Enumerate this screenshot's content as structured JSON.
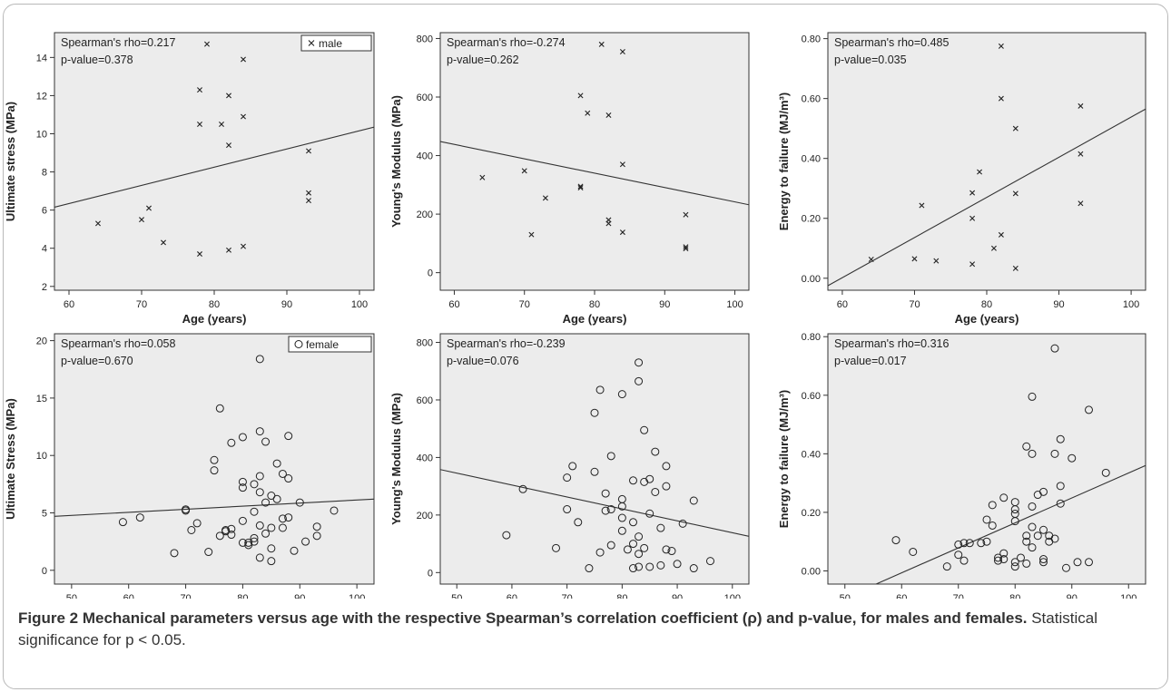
{
  "colors": {
    "panel_bg": "#ececec",
    "marks": "#222222",
    "text": "#222222",
    "caption_text": "#333333"
  },
  "caption": {
    "bold": "Figure 2 Mechanical parameters versus age with the respective Spearman’s correlation coefficient (ρ) and p-value, for males and females.",
    "normal": " Statistical significance for p < 0.05."
  },
  "chart_data": [
    {
      "type": "scatter",
      "marker": "x",
      "xlabel": "Age (years)",
      "ylabel": "Ultimate stress (MPa)",
      "xlim": [
        58,
        102
      ],
      "ylim": [
        1.8,
        15.3
      ],
      "xticks": [
        60,
        70,
        80,
        90,
        100
      ],
      "yticks": [
        2,
        4,
        6,
        8,
        10,
        12,
        14
      ],
      "annotations": [
        "Spearman's rho=0.217",
        "p-value=0.378"
      ],
      "legend": {
        "label": "male",
        "position": "top-right"
      },
      "fit_line": [
        [
          58,
          6.15
        ],
        [
          102,
          10.35
        ]
      ],
      "points": [
        [
          64,
          5.3
        ],
        [
          70,
          5.5
        ],
        [
          71,
          6.1
        ],
        [
          73,
          4.3
        ],
        [
          78,
          12.3
        ],
        [
          78,
          10.5
        ],
        [
          78,
          3.7
        ],
        [
          79,
          14.7
        ],
        [
          81,
          10.5
        ],
        [
          82,
          12.0
        ],
        [
          82,
          9.4
        ],
        [
          82,
          3.9
        ],
        [
          84,
          13.9
        ],
        [
          84,
          10.9
        ],
        [
          84,
          4.1
        ],
        [
          93,
          9.1
        ],
        [
          93,
          6.9
        ],
        [
          93,
          6.5
        ]
      ]
    },
    {
      "type": "scatter",
      "marker": "x",
      "xlabel": "Age (years)",
      "ylabel": "Young's Modulus (MPa)",
      "xlim": [
        58,
        102
      ],
      "ylim": [
        -60,
        820
      ],
      "xticks": [
        60,
        70,
        80,
        90,
        100
      ],
      "yticks": [
        0,
        200,
        400,
        600,
        800
      ],
      "annotations": [
        "Spearman's rho=-0.274",
        "p-value=0.262"
      ],
      "fit_line": [
        [
          58,
          448
        ],
        [
          102,
          232
        ]
      ],
      "points": [
        [
          64,
          325
        ],
        [
          70,
          348
        ],
        [
          71,
          130
        ],
        [
          73,
          255
        ],
        [
          78,
          605
        ],
        [
          78,
          295
        ],
        [
          78,
          290
        ],
        [
          79,
          545
        ],
        [
          81,
          780
        ],
        [
          82,
          538
        ],
        [
          82,
          180
        ],
        [
          82,
          168
        ],
        [
          84,
          755
        ],
        [
          84,
          370
        ],
        [
          84,
          138
        ],
        [
          93,
          198
        ],
        [
          93,
          88
        ],
        [
          93,
          82
        ]
      ]
    },
    {
      "type": "scatter",
      "marker": "x",
      "xlabel": "Age (years)",
      "ylabel": "Energy to failure (MJ/m³)",
      "xlim": [
        58,
        102
      ],
      "ylim": [
        -0.04,
        0.82
      ],
      "xticks": [
        60,
        70,
        80,
        90,
        100
      ],
      "yticks": [
        0.0,
        0.2,
        0.4,
        0.6,
        0.8
      ],
      "ytick_labels": [
        "0.00",
        "0.20",
        "0.40",
        "0.60",
        "0.80"
      ],
      "annotations": [
        "Spearman's rho=0.485",
        "p-value=0.035"
      ],
      "fit_line": [
        [
          58,
          -0.025
        ],
        [
          102,
          0.565
        ]
      ],
      "points": [
        [
          64,
          0.063
        ],
        [
          70,
          0.065
        ],
        [
          71,
          0.243
        ],
        [
          73,
          0.058
        ],
        [
          78,
          0.285
        ],
        [
          78,
          0.2
        ],
        [
          78,
          0.047
        ],
        [
          79,
          0.355
        ],
        [
          81,
          0.1
        ],
        [
          82,
          0.775
        ],
        [
          82,
          0.6
        ],
        [
          82,
          0.145
        ],
        [
          84,
          0.5
        ],
        [
          84,
          0.283
        ],
        [
          84,
          0.033
        ],
        [
          93,
          0.575
        ],
        [
          93,
          0.415
        ],
        [
          93,
          0.25
        ]
      ]
    },
    {
      "type": "scatter",
      "marker": "o",
      "xlabel": "Age (years)",
      "ylabel": "Ultimate Stress (MPa)",
      "xlim": [
        47,
        103
      ],
      "ylim": [
        -1.2,
        20.6
      ],
      "xticks": [
        50,
        60,
        70,
        80,
        90,
        100
      ],
      "yticks": [
        0,
        5,
        10,
        15,
        20
      ],
      "annotations": [
        "Spearman's rho=0.058",
        "p-value=0.670"
      ],
      "legend": {
        "label": "female",
        "position": "top-right"
      },
      "fit_line": [
        [
          47,
          4.7
        ],
        [
          103,
          6.2
        ]
      ],
      "points": [
        [
          59,
          4.2
        ],
        [
          62,
          4.6
        ],
        [
          68,
          1.5
        ],
        [
          70,
          5.3
        ],
        [
          70,
          5.2
        ],
        [
          71,
          3.5
        ],
        [
          72,
          4.1
        ],
        [
          74,
          1.6
        ],
        [
          75,
          9.6
        ],
        [
          75,
          8.7
        ],
        [
          76,
          14.1
        ],
        [
          76,
          3.0
        ],
        [
          77,
          3.5
        ],
        [
          77,
          3.4
        ],
        [
          78,
          11.1
        ],
        [
          78,
          3.6
        ],
        [
          78,
          3.1
        ],
        [
          80,
          11.6
        ],
        [
          80,
          7.7
        ],
        [
          80,
          7.2
        ],
        [
          80,
          4.3
        ],
        [
          80,
          2.4
        ],
        [
          81,
          2.4
        ],
        [
          81,
          2.2
        ],
        [
          82,
          7.5
        ],
        [
          82,
          5.1
        ],
        [
          82,
          2.8
        ],
        [
          82,
          2.5
        ],
        [
          83,
          18.4
        ],
        [
          83,
          12.1
        ],
        [
          83,
          8.2
        ],
        [
          83,
          6.8
        ],
        [
          83,
          3.9
        ],
        [
          83,
          1.1
        ],
        [
          84,
          11.2
        ],
        [
          84,
          5.9
        ],
        [
          84,
          3.2
        ],
        [
          85,
          6.5
        ],
        [
          85,
          3.7
        ],
        [
          85,
          1.9
        ],
        [
          85,
          0.8
        ],
        [
          86,
          9.3
        ],
        [
          86,
          6.2
        ],
        [
          87,
          8.4
        ],
        [
          87,
          4.5
        ],
        [
          87,
          3.7
        ],
        [
          88,
          11.7
        ],
        [
          88,
          8.0
        ],
        [
          88,
          4.6
        ],
        [
          89,
          1.7
        ],
        [
          90,
          5.9
        ],
        [
          91,
          2.5
        ],
        [
          93,
          3.8
        ],
        [
          93,
          3.0
        ],
        [
          96,
          5.2
        ]
      ]
    },
    {
      "type": "scatter",
      "marker": "o",
      "xlabel": "Age (years)",
      "ylabel": "Young's Modulus (MPa)",
      "xlim": [
        47,
        103
      ],
      "ylim": [
        -40,
        830
      ],
      "xticks": [
        50,
        60,
        70,
        80,
        90,
        100
      ],
      "yticks": [
        0,
        200,
        400,
        600,
        800
      ],
      "annotations": [
        "Spearman's rho=-0.239",
        "p-value=0.076"
      ],
      "fit_line": [
        [
          47,
          358
        ],
        [
          103,
          126
        ]
      ],
      "points": [
        [
          59,
          130
        ],
        [
          62,
          290
        ],
        [
          68,
          85
        ],
        [
          70,
          330
        ],
        [
          70,
          220
        ],
        [
          71,
          370
        ],
        [
          72,
          175
        ],
        [
          74,
          15
        ],
        [
          75,
          555
        ],
        [
          75,
          350
        ],
        [
          76,
          635
        ],
        [
          76,
          70
        ],
        [
          77,
          275
        ],
        [
          77,
          215
        ],
        [
          78,
          405
        ],
        [
          78,
          220
        ],
        [
          78,
          95
        ],
        [
          80,
          620
        ],
        [
          80,
          255
        ],
        [
          80,
          230
        ],
        [
          80,
          190
        ],
        [
          80,
          145
        ],
        [
          81,
          80
        ],
        [
          82,
          320
        ],
        [
          82,
          175
        ],
        [
          82,
          100
        ],
        [
          82,
          15
        ],
        [
          83,
          730
        ],
        [
          83,
          665
        ],
        [
          83,
          125
        ],
        [
          83,
          65
        ],
        [
          83,
          20
        ],
        [
          84,
          495
        ],
        [
          84,
          315
        ],
        [
          84,
          85
        ],
        [
          85,
          325
        ],
        [
          85,
          205
        ],
        [
          85,
          20
        ],
        [
          86,
          420
        ],
        [
          86,
          280
        ],
        [
          87,
          155
        ],
        [
          87,
          25
        ],
        [
          88,
          370
        ],
        [
          88,
          300
        ],
        [
          88,
          80
        ],
        [
          89,
          75
        ],
        [
          90,
          30
        ],
        [
          91,
          170
        ],
        [
          93,
          250
        ],
        [
          93,
          15
        ],
        [
          96,
          40
        ]
      ]
    },
    {
      "type": "scatter",
      "marker": "o",
      "xlabel": "Age (years)",
      "ylabel": "Energy to failure (MJ/m³)",
      "xlim": [
        47,
        103
      ],
      "ylim": [
        -0.045,
        0.81
      ],
      "xticks": [
        50,
        60,
        70,
        80,
        90,
        100
      ],
      "yticks": [
        0.0,
        0.2,
        0.4,
        0.6,
        0.8
      ],
      "ytick_labels": [
        "0.00",
        "0.20",
        "0.40",
        "0.60",
        "0.80"
      ],
      "annotations": [
        "Spearman's rho=0.316",
        "p-value=0.017"
      ],
      "fit_line": [
        [
          55.5,
          -0.045
        ],
        [
          103,
          0.36
        ]
      ],
      "points": [
        [
          59,
          0.105
        ],
        [
          62,
          0.065
        ],
        [
          68,
          0.015
        ],
        [
          70,
          0.09
        ],
        [
          70,
          0.055
        ],
        [
          71,
          0.095
        ],
        [
          71,
          0.035
        ],
        [
          72,
          0.095
        ],
        [
          74,
          0.095
        ],
        [
          75,
          0.175
        ],
        [
          75,
          0.1
        ],
        [
          76,
          0.225
        ],
        [
          76,
          0.155
        ],
        [
          77,
          0.045
        ],
        [
          77,
          0.035
        ],
        [
          78,
          0.25
        ],
        [
          78,
          0.06
        ],
        [
          78,
          0.04
        ],
        [
          80,
          0.235
        ],
        [
          80,
          0.21
        ],
        [
          80,
          0.195
        ],
        [
          80,
          0.17
        ],
        [
          80,
          0.03
        ],
        [
          80,
          0.015
        ],
        [
          81,
          0.045
        ],
        [
          82,
          0.425
        ],
        [
          82,
          0.12
        ],
        [
          82,
          0.1
        ],
        [
          82,
          0.025
        ],
        [
          83,
          0.595
        ],
        [
          83,
          0.4
        ],
        [
          83,
          0.22
        ],
        [
          83,
          0.15
        ],
        [
          83,
          0.08
        ],
        [
          84,
          0.26
        ],
        [
          84,
          0.12
        ],
        [
          85,
          0.27
        ],
        [
          85,
          0.14
        ],
        [
          85,
          0.04
        ],
        [
          85,
          0.03
        ],
        [
          86,
          0.12
        ],
        [
          86,
          0.1
        ],
        [
          87,
          0.76
        ],
        [
          87,
          0.4
        ],
        [
          87,
          0.11
        ],
        [
          88,
          0.45
        ],
        [
          88,
          0.29
        ],
        [
          88,
          0.23
        ],
        [
          89,
          0.01
        ],
        [
          90,
          0.385
        ],
        [
          91,
          0.03
        ],
        [
          93,
          0.55
        ],
        [
          93,
          0.03
        ],
        [
          96,
          0.335
        ]
      ]
    }
  ]
}
